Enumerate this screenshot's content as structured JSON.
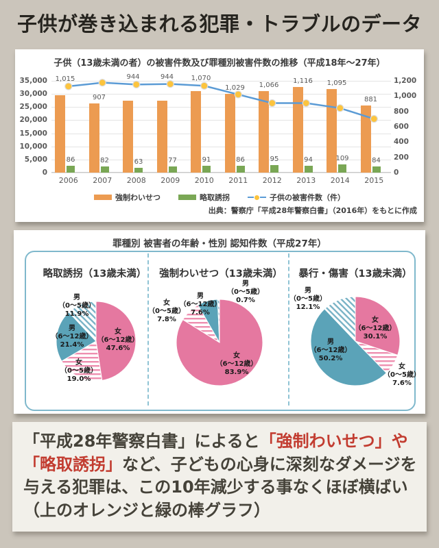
{
  "page_title": "子供が巻き込まれる犯罪・トラブルのデータ",
  "pie_section_heading": "罪種別 被害者の年齢・性別 認知件数（平成27年）",
  "chart_data": [
    {
      "type": "bar+line",
      "title": "子供（13歳未満の者）の被害件数及び罪種別被害件数の推移（平成18年～27年）",
      "categories": [
        "2006",
        "2007",
        "2008",
        "2009",
        "2010",
        "2011",
        "2012",
        "2013",
        "2014",
        "2015"
      ],
      "series": [
        {
          "name": "強制わいせつ",
          "type": "bar",
          "axis": "right",
          "color": "#ec9b51",
          "values": [
            1015,
            907,
            944,
            944,
            1070,
            1029,
            1066,
            1116,
            1095,
            881
          ]
        },
        {
          "name": "略取誘拐",
          "type": "bar",
          "axis": "right",
          "color": "#7aa755",
          "values": [
            86,
            82,
            63,
            77,
            91,
            86,
            95,
            94,
            109,
            84
          ]
        },
        {
          "name": "子供の被害件数（件）",
          "type": "line",
          "axis": "left",
          "color": "#5b9bd5",
          "marker_color": "#fcc43e",
          "values": [
            32900,
            34300,
            33600,
            33800,
            33100,
            29800,
            26500,
            26500,
            24600,
            20500
          ],
          "values_estimated_from_gridlines": true
        }
      ],
      "left_axis": {
        "min": 0,
        "max": 35000,
        "ticks": [
          35000,
          30000,
          25000,
          20000,
          15000,
          10000,
          5000,
          0
        ]
      },
      "right_axis": {
        "min": 0,
        "max": 1200,
        "ticks": [
          1200,
          1000,
          800,
          600,
          400,
          200,
          0
        ]
      },
      "grid": true,
      "legend_position": "bottom",
      "source": "出典：警察庁「平成28年警察白書」（2016年）をもとに作成"
    },
    {
      "type": "pie",
      "title": "略取誘拐（13歳未満）",
      "slices": [
        {
          "gender": "女",
          "age": "（6～12歳）",
          "pct": 47.6,
          "fill": "pink-solid"
        },
        {
          "gender": "女",
          "age": "（0～5歳）",
          "pct": 19.0,
          "fill": "pink-stripe"
        },
        {
          "gender": "男",
          "age": "（6～12歳）",
          "pct": 21.4,
          "fill": "blue-solid"
        },
        {
          "gender": "男",
          "age": "（0～5歳）",
          "pct": 11.9,
          "fill": "blue-stripe"
        }
      ]
    },
    {
      "type": "pie",
      "title": "強制わいせつ（13歳未満）",
      "slices": [
        {
          "gender": "女",
          "age": "（6～12歳）",
          "pct": 83.9,
          "fill": "pink-solid"
        },
        {
          "gender": "女",
          "age": "（0～5歳）",
          "pct": 7.8,
          "fill": "pink-stripe"
        },
        {
          "gender": "男",
          "age": "（6～12歳）",
          "pct": 7.6,
          "fill": "blue-solid"
        },
        {
          "gender": "男",
          "age": "（0～5歳）",
          "pct": 0.7,
          "fill": "blue-stripe"
        }
      ]
    },
    {
      "type": "pie",
      "title": "暴行・傷害（13歳未満）",
      "slices": [
        {
          "gender": "女",
          "age": "（6～12歳）",
          "pct": 30.1,
          "fill": "pink-solid"
        },
        {
          "gender": "女",
          "age": "（0～5歳）",
          "pct": 7.6,
          "fill": "pink-stripe"
        },
        {
          "gender": "男",
          "age": "（6～12歳）",
          "pct": 50.2,
          "fill": "blue-solid"
        },
        {
          "gender": "男",
          "age": "（0～5歳）",
          "pct": 12.1,
          "fill": "blue-stripe"
        }
      ]
    }
  ],
  "commentary": {
    "lines": [
      [
        {
          "text": "「平成28年警察白書」によると",
          "red": false
        },
        {
          "text": "「強制わいせつ」や",
          "red": true
        }
      ],
      [
        {
          "text": "「略取誘拐」",
          "red": true
        },
        {
          "text": "など、子どもの心身に深刻なダメージを",
          "red": false
        }
      ],
      [
        {
          "text": "与える犯罪は、この10年減少する事なくほぼ横ばい",
          "red": false
        }
      ],
      [
        {
          "text": "（上のオレンジと緑の棒グラフ）",
          "red": false
        }
      ]
    ]
  },
  "colors": {
    "page_background": "#cbc5bb",
    "panel_background": "#ffffff",
    "commentary_background": "#f2f0ea",
    "bar_orange": "#ec9b51",
    "bar_green": "#7aa755",
    "line_blue": "#5b9bd5",
    "marker_yellow": "#fcc43e",
    "pie_pink": "#e578a0",
    "pie_blue": "#5ba3b8",
    "pie_border_blue": "#7fb8cc",
    "red_text": "#c23c30"
  }
}
